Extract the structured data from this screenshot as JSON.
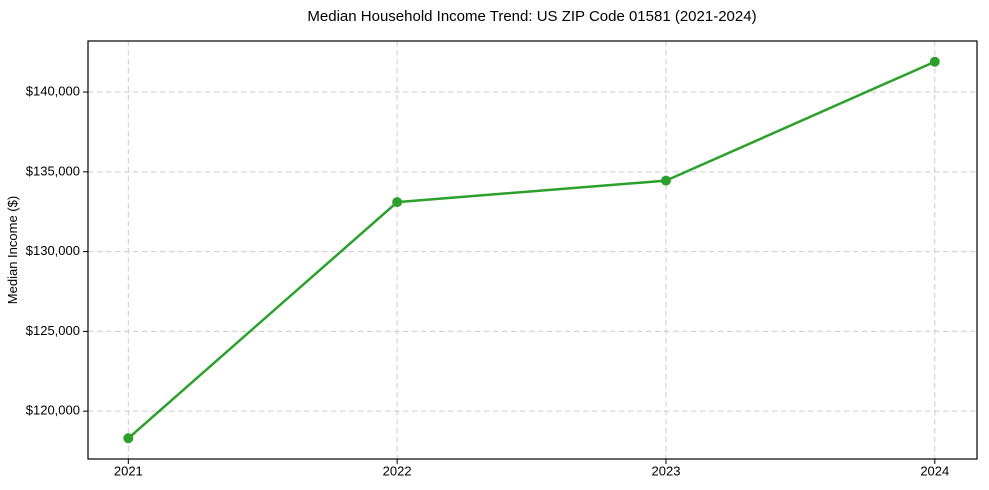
{
  "chart_data": {
    "type": "line",
    "title": "Median Household Income Trend: US ZIP Code 01581 (2021-2024)",
    "xlabel": "",
    "ylabel": "Median Income ($)",
    "x": [
      2021,
      2022,
      2023,
      2024
    ],
    "series": [
      {
        "name": "Median Household Income",
        "values": [
          118300,
          133100,
          134450,
          141900
        ]
      }
    ],
    "x_tick_labels": [
      "2021",
      "2022",
      "2023",
      "2024"
    ],
    "y_ticks": [
      120000,
      125000,
      130000,
      135000,
      140000
    ],
    "y_tick_labels": [
      "$120,000",
      "$125,000",
      "$130,000",
      "$135,000",
      "$140,000"
    ],
    "xlim": [
      2020.85,
      2024.157
    ],
    "ylim": [
      117000,
      143200
    ],
    "grid": true,
    "grid_style": "dashed",
    "legend": "none",
    "line_color": "#2ca02c",
    "marker": "circle",
    "marker_color": "#2ca02c",
    "grid_color": "#cccccc",
    "spine_color": "#000000"
  }
}
